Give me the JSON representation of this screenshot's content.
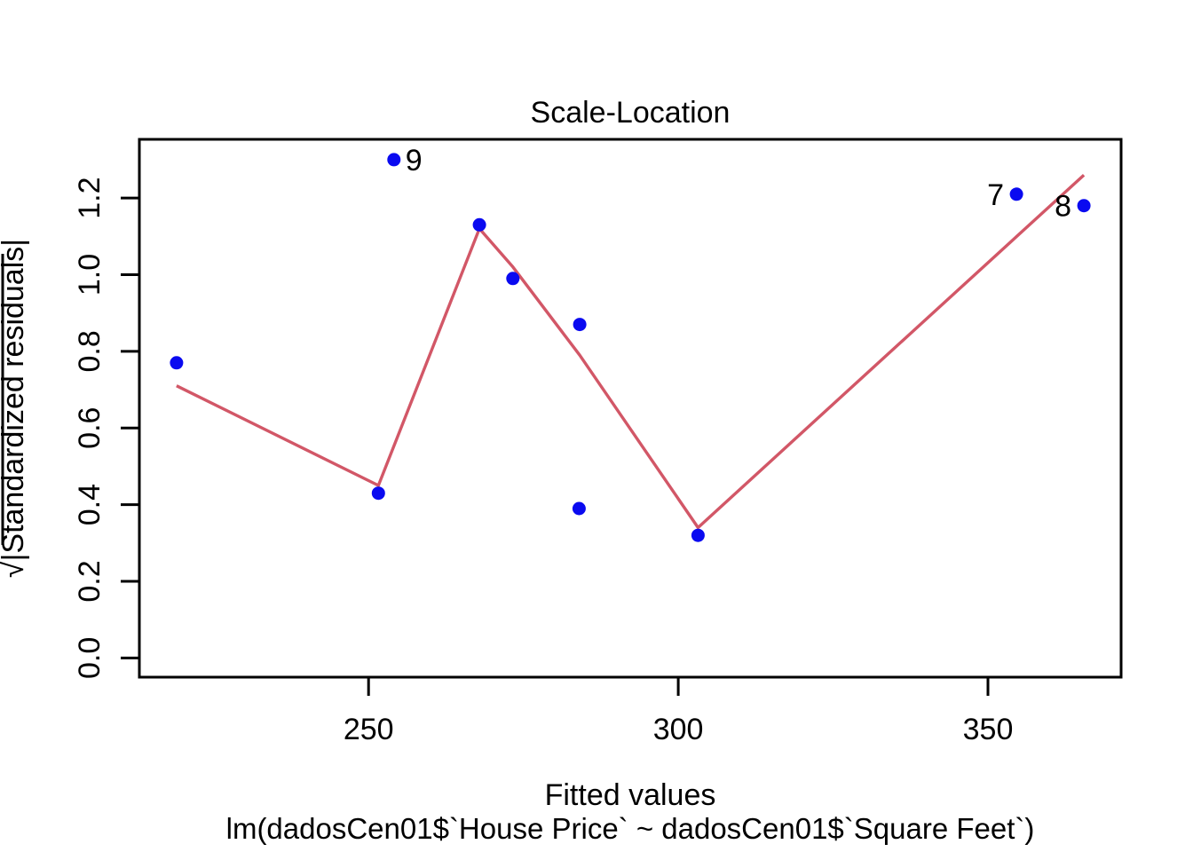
{
  "chart_data": {
    "type": "scatter",
    "title": "Scale-Location",
    "xlabel": "Fitted values",
    "model_caption": "lm(dadosCen01$`House Price` ~ dadosCen01$`Square Feet`)",
    "ylabel": {
      "radical": "√",
      "text": "|Standardized residuals|"
    },
    "x_ticks": [
      "250",
      "300",
      "350"
    ],
    "y_ticks": [
      "0.0",
      "0.2",
      "0.4",
      "0.6",
      "0.8",
      "1.0",
      "1.2"
    ],
    "xlim": [
      213.0,
      371.5
    ],
    "ylim": [
      -0.05,
      1.353
    ],
    "grid": false,
    "legend": null,
    "axis_color": "#000000",
    "point_color": "#0a0af0",
    "smooth_color": "#d25767",
    "points": [
      {
        "x": 219.0,
        "y": 0.77
      },
      {
        "x": 251.6,
        "y": 0.43
      },
      {
        "x": 254.1,
        "y": 1.3,
        "label": "9",
        "label_side": "right"
      },
      {
        "x": 267.9,
        "y": 1.13
      },
      {
        "x": 273.3,
        "y": 0.99
      },
      {
        "x": 284.1,
        "y": 0.87
      },
      {
        "x": 284.0,
        "y": 0.39
      },
      {
        "x": 303.2,
        "y": 0.32
      },
      {
        "x": 354.6,
        "y": 1.21,
        "label": "7",
        "label_side": "left"
      },
      {
        "x": 365.5,
        "y": 1.18,
        "label": "8",
        "label_side": "left"
      }
    ],
    "smooth_line": [
      {
        "x": 219.0,
        "y": 0.71
      },
      {
        "x": 251.6,
        "y": 0.45
      },
      {
        "x": 267.9,
        "y": 1.12
      },
      {
        "x": 273.3,
        "y": 1.02
      },
      {
        "x": 284.1,
        "y": 0.79
      },
      {
        "x": 303.2,
        "y": 0.34
      },
      {
        "x": 365.5,
        "y": 1.26
      }
    ]
  }
}
